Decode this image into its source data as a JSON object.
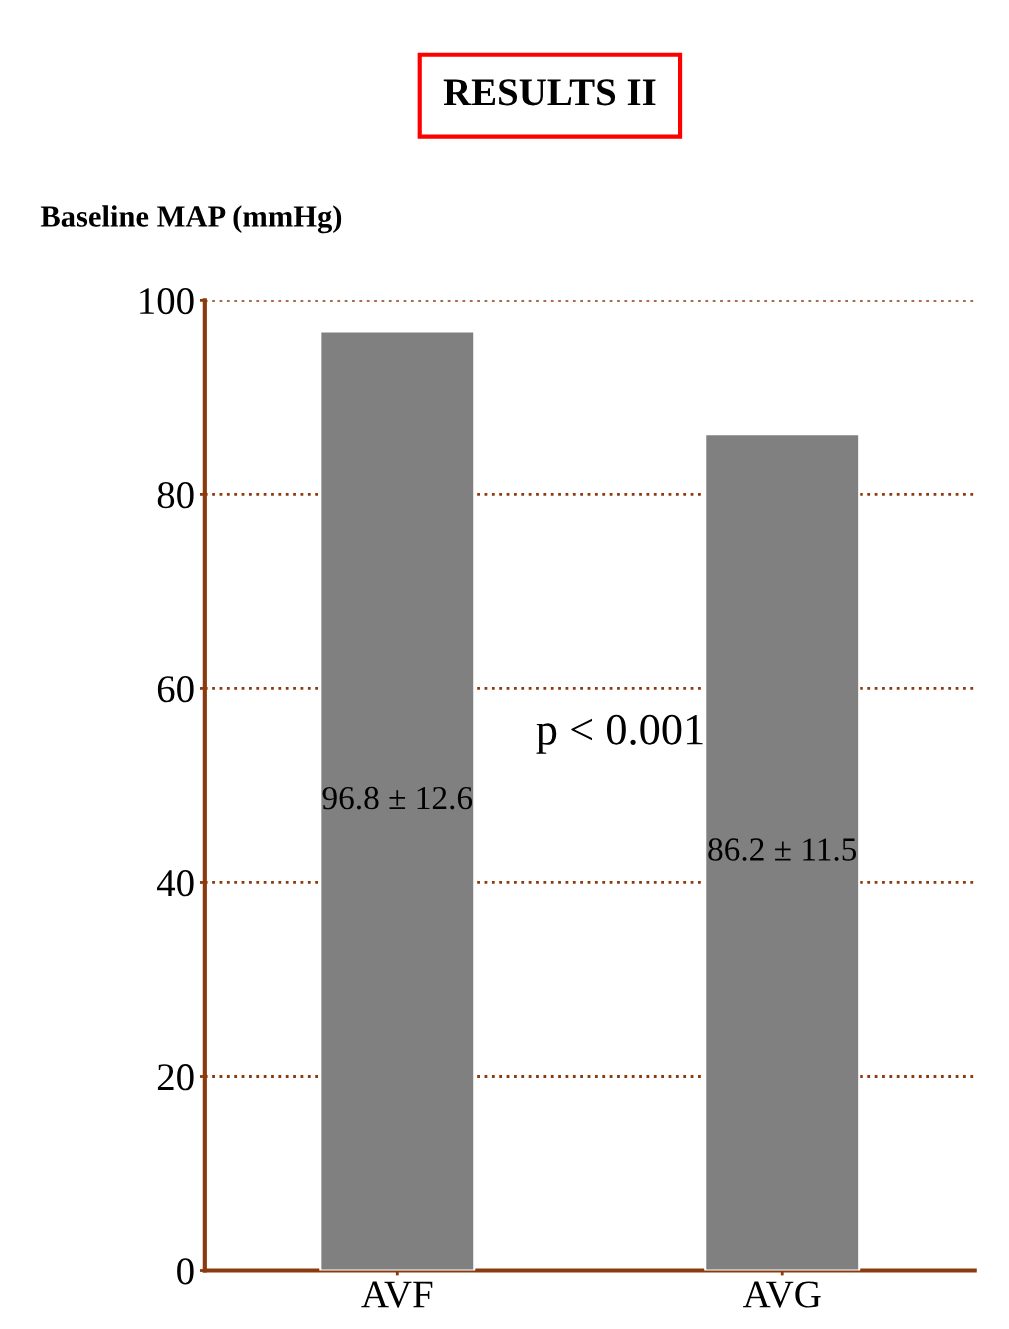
{
  "chart_data": {
    "type": "bar",
    "title": "RESULTS II",
    "ylabel": "Baseline MAP (mmHg)",
    "categories": [
      "AVF",
      "AVG"
    ],
    "values": [
      96.8,
      86.2
    ],
    "value_labels": [
      "96.8 ± 12.6",
      "86.2 ± 11.5"
    ],
    "color": "#808080",
    "ylim": [
      0,
      100
    ],
    "yticks": [
      0,
      20,
      40,
      60,
      80,
      100
    ],
    "grid": "y",
    "legend": false,
    "annotations": [
      "p < 0.001"
    ]
  }
}
